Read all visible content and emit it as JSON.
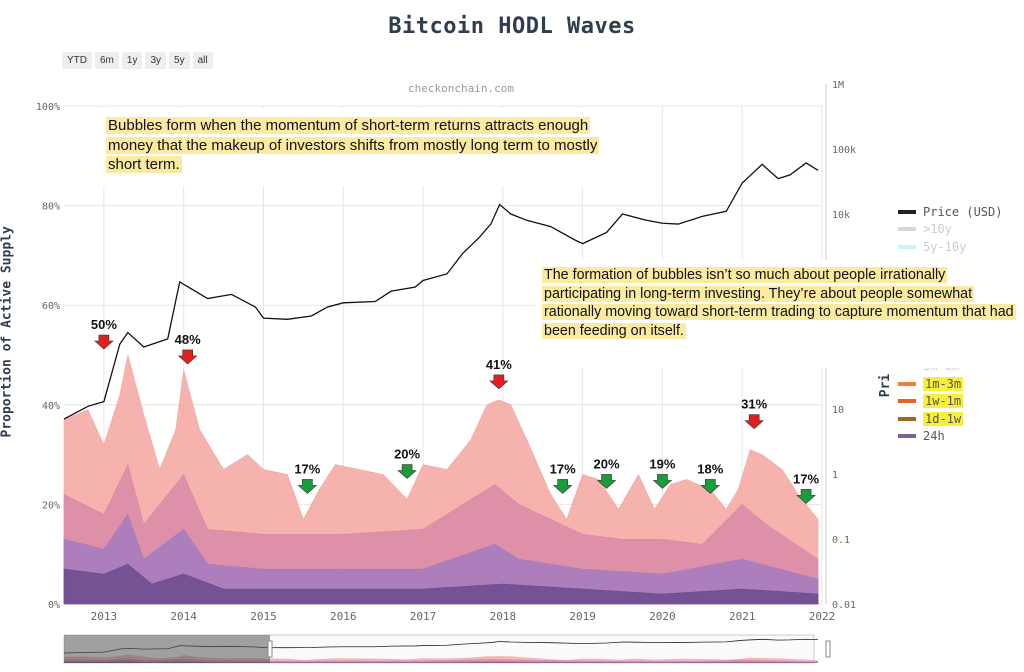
{
  "title": "Bitcoin HODL Waves",
  "range_buttons": [
    "YTD",
    "6m",
    "1y",
    "3y",
    "5y",
    "all"
  ],
  "watermark": "checkonchain.com",
  "annotations": {
    "top": "Bubbles form when the momentum of short-term returns attracts enough money that the makeup of investors shifts from mostly long term to mostly short term.",
    "right": "The formation of bubbles isn’t so much about people irrationally participating in long-term investing. They’re about people somewhat rationally moving toward short-term trading to capture momentum that had been feeding on itself."
  },
  "y_axis_right_label": "Pri",
  "chart_data": {
    "type": "area",
    "title": "Bitcoin HODL Waves",
    "ylabel": "Proportion of Active Supply",
    "ylim": [
      0,
      100
    ],
    "xlim": [
      2012.5,
      2022.0
    ],
    "x_ticks": [
      "2013",
      "2014",
      "2015",
      "2016",
      "2017",
      "2018",
      "2019",
      "2020",
      "2021",
      "2022"
    ],
    "y_ticks": [
      "0%",
      "20%",
      "40%",
      "60%",
      "80%",
      "100%"
    ],
    "y2_ticks": [
      "0.01",
      "0.1",
      "1",
      "10",
      "10k",
      "100k",
      "1M"
    ],
    "y2_scale": "log",
    "y2lim": [
      0.01,
      1000000
    ],
    "grid": true,
    "legend_position": "right",
    "series": [
      {
        "name": "1m-3m",
        "color": "#f4a6a0",
        "x": [
          2012.5,
          2012.8,
          2013.0,
          2013.2,
          2013.3,
          2013.5,
          2013.7,
          2013.9,
          2014.0,
          2014.2,
          2014.5,
          2014.8,
          2015.0,
          2015.3,
          2015.5,
          2015.7,
          2015.9,
          2016.2,
          2016.5,
          2016.8,
          2017.0,
          2017.3,
          2017.6,
          2017.8,
          2017.95,
          2018.1,
          2018.3,
          2018.6,
          2018.8,
          2019.0,
          2019.2,
          2019.45,
          2019.7,
          2019.9,
          2020.1,
          2020.3,
          2020.6,
          2020.8,
          2020.95,
          2021.1,
          2021.25,
          2021.5,
          2021.7,
          2021.95
        ],
        "y": [
          37,
          39,
          32,
          42,
          50,
          38,
          27,
          35,
          47,
          35,
          27,
          30,
          27,
          26,
          17,
          23,
          28,
          27,
          26,
          21,
          28,
          27,
          33,
          40,
          41,
          40,
          33,
          22,
          17,
          26,
          25,
          19,
          26,
          19,
          24,
          25,
          23,
          19,
          23,
          31,
          30,
          27,
          22,
          17
        ]
      },
      {
        "name": "1w-1m",
        "color": "#d88aa6",
        "x": [
          2012.5,
          2013.0,
          2013.3,
          2013.5,
          2014.0,
          2014.3,
          2015.0,
          2016.0,
          2017.0,
          2017.9,
          2018.2,
          2019.0,
          2019.5,
          2020.0,
          2020.5,
          2021.0,
          2021.3,
          2021.95
        ],
        "y": [
          22,
          18,
          28,
          16,
          26,
          15,
          14,
          14,
          15,
          24,
          20,
          14,
          13,
          13,
          12,
          20,
          16,
          9
        ]
      },
      {
        "name": "1d-1w",
        "color": "#a47bc0",
        "x": [
          2012.5,
          2013.0,
          2013.3,
          2013.5,
          2014.0,
          2014.3,
          2015.0,
          2016.0,
          2017.0,
          2017.9,
          2018.2,
          2019.0,
          2020.0,
          2021.0,
          2021.95
        ],
        "y": [
          13,
          11,
          18,
          9,
          15,
          8,
          7,
          7,
          7,
          12,
          9,
          7,
          6,
          9,
          5
        ]
      },
      {
        "name": "24h",
        "color": "#6a4a8c",
        "x": [
          2012.5,
          2013.0,
          2013.3,
          2013.6,
          2014.0,
          2014.5,
          2015.0,
          2016.0,
          2017.0,
          2018.0,
          2019.0,
          2020.0,
          2021.0,
          2021.95
        ],
        "y": [
          7,
          6,
          8,
          4,
          6,
          3,
          3,
          3,
          3,
          4,
          3,
          2,
          3,
          2
        ]
      }
    ],
    "price_series": {
      "name": "Price (USD)",
      "color": "#111111",
      "x": [
        2012.5,
        2012.8,
        2013.0,
        2013.2,
        2013.3,
        2013.5,
        2013.8,
        2013.95,
        2014.1,
        2014.3,
        2014.6,
        2014.9,
        2015.0,
        2015.3,
        2015.6,
        2015.8,
        2016.0,
        2016.4,
        2016.6,
        2016.9,
        2017.0,
        2017.3,
        2017.5,
        2017.7,
        2017.85,
        2017.96,
        2018.1,
        2018.3,
        2018.6,
        2018.9,
        2019.0,
        2019.3,
        2019.5,
        2019.8,
        2020.0,
        2020.2,
        2020.5,
        2020.8,
        2021.0,
        2021.25,
        2021.45,
        2021.6,
        2021.8,
        2021.95
      ],
      "y": [
        7,
        11,
        13,
        100,
        150,
        90,
        120,
        900,
        700,
        500,
        580,
        370,
        250,
        240,
        270,
        370,
        430,
        450,
        650,
        750,
        950,
        1200,
        2500,
        4300,
        7000,
        14000,
        10000,
        8000,
        6400,
        4000,
        3500,
        5200,
        10000,
        8000,
        7200,
        7000,
        9200,
        11000,
        30000,
        58000,
        35000,
        40000,
        61000,
        47000
      ]
    },
    "legend": [
      {
        "name": "Price (USD)",
        "color": "#222222",
        "faded": false
      },
      {
        "name": ">10y",
        "color": "#bbbbbb",
        "faded": true
      },
      {
        "name": "5y-10y",
        "color": "#a9e9f0",
        "faded": true
      },
      {
        "name": "3m-6m",
        "color": "#f8c9c2",
        "faded": true
      },
      {
        "name": "1m-3m",
        "color": "#f2813a",
        "faded": false
      },
      {
        "name": "1w-1m",
        "color": "#e8622a",
        "faded": false
      },
      {
        "name": "1d-1w",
        "color": "#9c6a1c",
        "faded": false
      },
      {
        "name": "24h",
        "color": "#7d5e9e",
        "faded": false
      }
    ],
    "callouts": [
      {
        "label": "50%",
        "x": 2013.0,
        "y": 52,
        "dir": "down",
        "color": "#e02020"
      },
      {
        "label": "48%",
        "x": 2014.05,
        "y": 49,
        "dir": "down",
        "color": "#e02020"
      },
      {
        "label": "17%",
        "x": 2015.55,
        "y": 23,
        "dir": "down",
        "color": "#1a9c3c"
      },
      {
        "label": "20%",
        "x": 2016.8,
        "y": 26,
        "dir": "down",
        "color": "#1a9c3c"
      },
      {
        "label": "41%",
        "x": 2017.95,
        "y": 44,
        "dir": "down",
        "color": "#e02020"
      },
      {
        "label": "17%",
        "x": 2018.75,
        "y": 23,
        "dir": "down",
        "color": "#1a9c3c"
      },
      {
        "label": "20%",
        "x": 2019.3,
        "y": 24,
        "dir": "down",
        "color": "#1a9c3c"
      },
      {
        "label": "19%",
        "x": 2020.0,
        "y": 24,
        "dir": "down",
        "color": "#1a9c3c"
      },
      {
        "label": "18%",
        "x": 2020.6,
        "y": 23,
        "dir": "down",
        "color": "#1a9c3c"
      },
      {
        "label": "31%",
        "x": 2021.15,
        "y": 36,
        "dir": "down",
        "color": "#e02020"
      },
      {
        "label": "17%",
        "x": 2021.8,
        "y": 21,
        "dir": "down",
        "color": "#1a9c3c"
      }
    ]
  }
}
